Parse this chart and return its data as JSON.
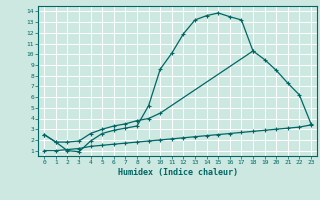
{
  "xlabel": "Humidex (Indice chaleur)",
  "bg_color": "#cce8e0",
  "grid_color": "#ffffff",
  "line_color": "#006666",
  "xlim": [
    -0.5,
    23.5
  ],
  "ylim": [
    0.5,
    14.5
  ],
  "xticks": [
    0,
    1,
    2,
    3,
    4,
    5,
    6,
    7,
    8,
    9,
    10,
    11,
    12,
    13,
    14,
    15,
    16,
    17,
    18,
    19,
    20,
    21,
    22,
    23
  ],
  "yticks": [
    1,
    2,
    3,
    4,
    5,
    6,
    7,
    8,
    9,
    10,
    11,
    12,
    13,
    14
  ],
  "curve1_x": [
    0,
    1,
    2,
    3,
    4,
    5,
    6,
    7,
    8,
    9,
    10,
    11,
    12,
    13,
    14,
    15,
    16,
    17,
    18
  ],
  "curve1_y": [
    2.5,
    1.8,
    1.0,
    0.9,
    1.9,
    2.6,
    2.9,
    3.1,
    3.3,
    5.2,
    8.6,
    10.1,
    11.9,
    13.2,
    13.6,
    13.85,
    13.5,
    13.2,
    10.3
  ],
  "curve2_x": [
    0,
    1,
    2,
    3,
    4,
    5,
    6,
    7,
    8,
    9,
    10,
    18,
    19,
    20,
    21,
    22,
    23
  ],
  "curve2_y": [
    2.5,
    1.8,
    1.8,
    1.9,
    2.6,
    3.0,
    3.3,
    3.5,
    3.8,
    4.0,
    4.5,
    10.3,
    9.5,
    8.5,
    7.3,
    6.2,
    3.5
  ],
  "curve3_x": [
    0,
    1,
    2,
    3,
    4,
    5,
    6,
    7,
    8,
    9,
    10,
    11,
    12,
    13,
    14,
    15,
    16,
    17,
    18,
    19,
    20,
    21,
    22,
    23
  ],
  "curve3_y": [
    1.0,
    1.0,
    1.1,
    1.2,
    1.4,
    1.5,
    1.6,
    1.7,
    1.8,
    1.9,
    2.0,
    2.1,
    2.2,
    2.3,
    2.4,
    2.5,
    2.6,
    2.7,
    2.8,
    2.9,
    3.0,
    3.1,
    3.2,
    3.4
  ],
  "xlabel_fontsize": 6,
  "tick_fontsize": 4.5
}
